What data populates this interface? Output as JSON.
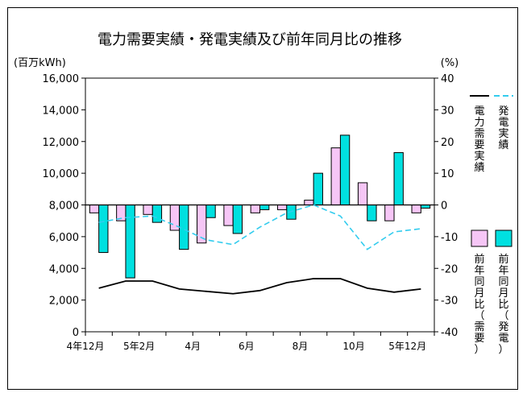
{
  "chart_data": {
    "type": "bar",
    "title": "電力需要実績・発電実績及び前年同月比の推移",
    "left_axis_unit": "(百万kWh)",
    "right_axis_unit": "(%)",
    "left_ylim": [
      0,
      16000
    ],
    "left_ticks": [
      "0",
      "2,000",
      "4,000",
      "6,000",
      "8,000",
      "10,000",
      "12,000",
      "14,000",
      "16,000"
    ],
    "right_ylim": [
      -40,
      40
    ],
    "right_ticks": [
      "-40",
      "-30",
      "-20",
      "-10",
      "0",
      "10",
      "20",
      "30",
      "40"
    ],
    "x_tick_labels": [
      "4年12月",
      "5年2月",
      "4月",
      "6月",
      "8月",
      "10月",
      "5年12月"
    ],
    "x_tick_indices": [
      0,
      2,
      4,
      6,
      8,
      10,
      12
    ],
    "series": [
      {
        "name": "前年同月比（需要）",
        "axis": "right",
        "kind": "bar",
        "color": "#f6c6f6",
        "values": [
          -2.5,
          -5,
          -3,
          -8,
          -12,
          -6.5,
          -2.5,
          -1.5,
          1.5,
          18,
          7,
          -5,
          -2.5
        ]
      },
      {
        "name": "前年同月比（発電）",
        "axis": "right",
        "kind": "bar",
        "color": "#00e0e0",
        "values": [
          -15,
          -23,
          -5.5,
          -14,
          -4,
          -9,
          -1.5,
          -4.5,
          10,
          22,
          -5,
          16.5,
          -1
        ]
      },
      {
        "name": "電力需要実績",
        "axis": "left",
        "kind": "line",
        "color": "#000000",
        "values": [
          2750,
          3200,
          3200,
          2700,
          2550,
          2400,
          2600,
          3100,
          3350,
          3350,
          2750,
          2500,
          2700
        ]
      },
      {
        "name": "発電実績",
        "axis": "left",
        "kind": "line",
        "color": "#33ccee",
        "dashed": true,
        "values": [
          6900,
          7200,
          7300,
          6600,
          5800,
          5500,
          6600,
          7500,
          8000,
          7300,
          5200,
          6300,
          6500
        ]
      }
    ]
  }
}
